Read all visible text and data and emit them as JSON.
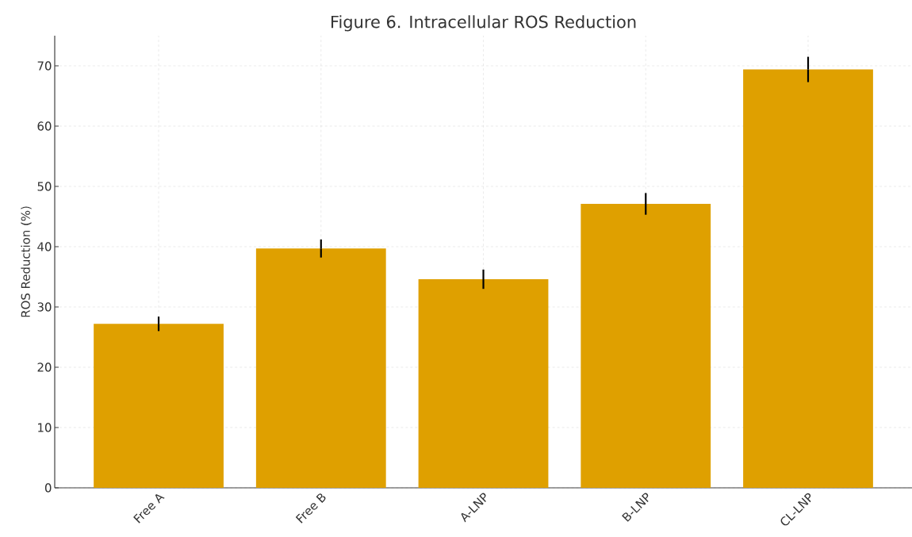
{
  "chart_data": {
    "type": "bar",
    "title": "Figure 6. Intracellular ROS Reduction",
    "ylabel": "ROS Reduction (%)",
    "categories": [
      "Free A",
      "Free B",
      "A-LNP",
      "B-LNP",
      "CL-LNP"
    ],
    "values": [
      27.2,
      39.7,
      34.6,
      47.1,
      69.4
    ],
    "errors": [
      1.2,
      1.5,
      1.6,
      1.8,
      2.1
    ],
    "color": "#dfa000",
    "ylim": [
      0,
      75
    ],
    "yticks": [
      0,
      10,
      20,
      30,
      40,
      50,
      60,
      70
    ],
    "grid": true
  }
}
